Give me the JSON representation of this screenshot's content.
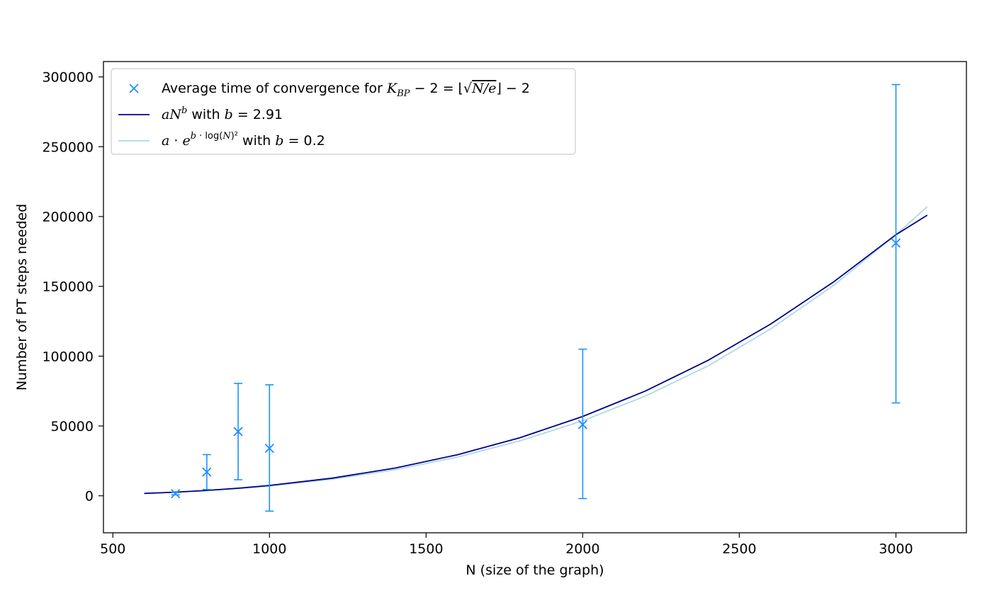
{
  "chart_data": {
    "type": "scatter",
    "xlabel": "N (size of the graph)",
    "ylabel": "Number of PT steps needed",
    "xlim": [
      470,
      3225
    ],
    "ylim": [
      -26500,
      311000
    ],
    "xticks": [
      500,
      1000,
      1500,
      2000,
      2500,
      3000
    ],
    "yticks": [
      0,
      50000,
      100000,
      150000,
      200000,
      250000,
      300000
    ],
    "grid": false,
    "legend_position": "top-left",
    "colors": {
      "points": "#1e90ff",
      "power_law": "#00008b",
      "exp_log": "#add8e6"
    },
    "series": [
      {
        "name": "Average time of convergence for K_BP − 2 = ⌊√(N/e)⌋ − 2",
        "kind": "errorbar",
        "x": [
          700,
          800,
          900,
          1000,
          2000,
          3000
        ],
        "y": [
          1500,
          17000,
          46000,
          34000,
          51000,
          181000
        ],
        "yerr_low": [
          700,
          4500,
          11500,
          -11000,
          -2000,
          66500
        ],
        "yerr_high": [
          2300,
          29500,
          80500,
          79500,
          105000,
          294500
        ]
      },
      {
        "name": "aN^b with b = 2.91",
        "kind": "line",
        "b": 2.91,
        "x": [
          600,
          700,
          800,
          900,
          1000,
          1200,
          1400,
          1600,
          1800,
          2000,
          2200,
          2400,
          2600,
          2800,
          3000,
          3100
        ],
        "y": [
          1660,
          2600,
          3850,
          5430,
          7380,
          12600,
          19800,
          29400,
          41600,
          56800,
          75000,
          97000,
          123000,
          153000,
          187000,
          201000
        ]
      },
      {
        "name": "a·e^{b·log(N)²} with b = 0.2",
        "kind": "line",
        "b": 0.2,
        "x": [
          600,
          700,
          800,
          900,
          1000,
          1200,
          1400,
          1600,
          1800,
          2000,
          2200,
          2400,
          2600,
          2800,
          3000,
          3100
        ],
        "y": [
          1800,
          2600,
          3700,
          5100,
          6900,
          11800,
          18600,
          27700,
          39400,
          53700,
          71400,
          93000,
          119500,
          150500,
          187000,
          207000
        ]
      }
    ]
  }
}
